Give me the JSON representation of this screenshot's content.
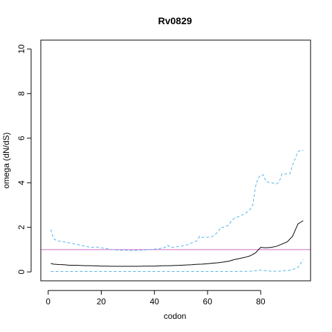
{
  "chart_data": {
    "type": "line",
    "title": "Rv0829",
    "xlabel": "codon",
    "ylabel": "omega (dN/dS)",
    "xlim": [
      -2.76,
      98.76
    ],
    "ylim": [
      -0.4,
      10.4
    ],
    "xticks": [
      0,
      20,
      40,
      60,
      80
    ],
    "yticks": [
      0,
      2,
      4,
      6,
      8,
      10
    ],
    "grid": false,
    "colors": {
      "mean": "#000000",
      "bounds": "#4fb3e8",
      "reference": "#cc66cc"
    },
    "reference_line": {
      "y": 1
    },
    "series": [
      {
        "role": "upper",
        "style": "dashed",
        "x": [
          1,
          2,
          3,
          4,
          6,
          8,
          10,
          12,
          14,
          16,
          18,
          20,
          22,
          24,
          26,
          28,
          30,
          32,
          34,
          36,
          38,
          40,
          42,
          44,
          45,
          46,
          48,
          50,
          52,
          54,
          56,
          57,
          58,
          60,
          62,
          64,
          65,
          66,
          68,
          69,
          70,
          72,
          74,
          76,
          77,
          78,
          79,
          80,
          81,
          82,
          84,
          86,
          87,
          88,
          90,
          91,
          92,
          93,
          94,
          95,
          96
        ],
        "y": [
          1.9,
          1.5,
          1.42,
          1.38,
          1.35,
          1.3,
          1.25,
          1.2,
          1.15,
          1.1,
          1.12,
          1.08,
          1.05,
          1.0,
          0.98,
          0.97,
          0.97,
          0.96,
          0.97,
          0.98,
          1.0,
          1.02,
          1.05,
          1.1,
          1.2,
          1.1,
          1.12,
          1.15,
          1.2,
          1.3,
          1.4,
          1.6,
          1.55,
          1.55,
          1.6,
          1.8,
          2.0,
          2.0,
          2.1,
          2.3,
          2.4,
          2.5,
          2.6,
          2.8,
          3.0,
          3.8,
          4.2,
          4.35,
          4.35,
          4.05,
          4.0,
          3.95,
          4.05,
          4.4,
          4.4,
          4.4,
          4.8,
          5.1,
          5.4,
          5.45,
          5.45
        ]
      },
      {
        "role": "mean",
        "style": "solid",
        "x": [
          1,
          2,
          4,
          6,
          8,
          10,
          12,
          14,
          16,
          18,
          20,
          22,
          24,
          26,
          28,
          30,
          32,
          34,
          36,
          38,
          40,
          42,
          44,
          46,
          48,
          50,
          52,
          54,
          56,
          58,
          60,
          62,
          64,
          66,
          68,
          70,
          72,
          74,
          76,
          78,
          80,
          82,
          84,
          86,
          88,
          90,
          92,
          94,
          96
        ],
        "y": [
          0.38,
          0.35,
          0.33,
          0.32,
          0.3,
          0.3,
          0.29,
          0.28,
          0.28,
          0.27,
          0.26,
          0.26,
          0.25,
          0.25,
          0.25,
          0.25,
          0.25,
          0.25,
          0.26,
          0.26,
          0.26,
          0.27,
          0.28,
          0.28,
          0.29,
          0.3,
          0.31,
          0.32,
          0.34,
          0.35,
          0.37,
          0.39,
          0.41,
          0.44,
          0.48,
          0.55,
          0.6,
          0.65,
          0.72,
          0.85,
          1.1,
          1.08,
          1.1,
          1.15,
          1.25,
          1.35,
          1.6,
          2.15,
          2.3
        ]
      },
      {
        "role": "lower",
        "style": "dashed",
        "x": [
          1,
          10,
          20,
          30,
          40,
          50,
          60,
          70,
          76,
          78,
          80,
          82,
          84,
          86,
          88,
          90,
          92,
          94,
          96
        ],
        "y": [
          0.02,
          0.02,
          0.02,
          0.02,
          0.02,
          0.02,
          0.02,
          0.02,
          0.03,
          0.05,
          0.08,
          0.05,
          0.03,
          0.03,
          0.04,
          0.06,
          0.1,
          0.2,
          0.55
        ]
      }
    ]
  }
}
